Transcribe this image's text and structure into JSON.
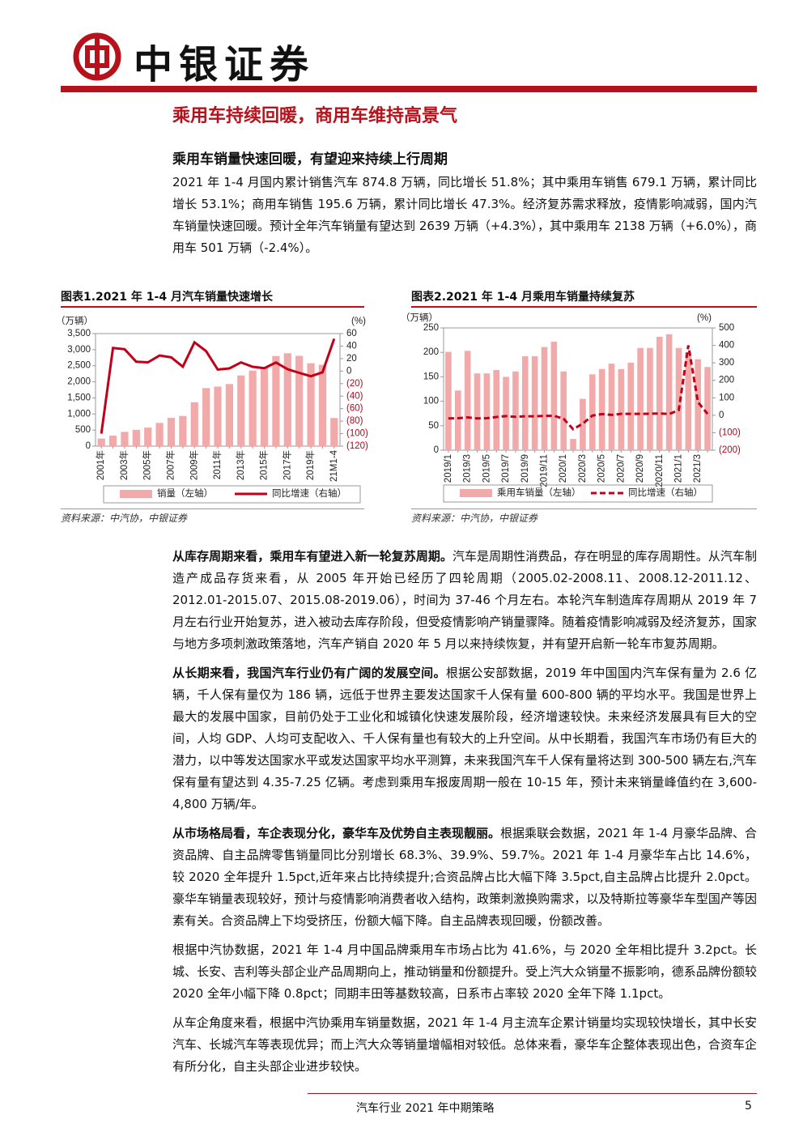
{
  "header": {
    "logo_text": "中银证券"
  },
  "section_title": "乘用车持续回暖，商用车维持高景气",
  "subtitle": "乘用车销量快速回暖，有望迎来持续上行周期",
  "intro": "2021 年 1-4 月国内累计销售汽车 874.8 万辆，同比增长 51.8%；其中乘用车销售 679.1 万辆，累计同比增长 53.1%；商用车销售 195.6 万辆，累计同比增长 47.3%。经济复苏需求释放，疫情影响减弱，国内汽车销量快速回暖。预计全年汽车销量有望达到 2639 万辆（+4.3%），其中乘用车 2138 万辆（+6.0%），商用车 501 万辆（-2.4%）。",
  "chart_data": [
    {
      "type": "bar_line",
      "title": "图表1.2021 年 1-4 月汽车销量快速增长",
      "source": "资料来源：中汽协，中银证券",
      "ylabel": "（万辆）",
      "y2label": "(%)",
      "categories": [
        "2001年",
        null,
        "2003年",
        null,
        "2005年",
        null,
        "2007年",
        null,
        "2009年",
        null,
        "2011年",
        null,
        "2013年",
        null,
        "2015年",
        null,
        "2017年",
        null,
        "2019年",
        null,
        "21M1-4"
      ],
      "series": [
        {
          "name": "销量（左轴）",
          "color": "#f2a9a9",
          "axis": "y",
          "values": [
            237,
            325,
            444,
            507,
            576,
            722,
            879,
            938,
            1364,
            1806,
            1851,
            1931,
            2198,
            2349,
            2460,
            2803,
            2888,
            2808,
            2577,
            2531,
            875
          ]
        },
        {
          "name": "同比增速（右轴）",
          "color": "#c00018",
          "axis": "y2",
          "line_style": "solid",
          "values": [
            -100,
            37,
            35,
            15,
            14,
            25,
            22,
            7,
            46,
            32,
            2.5,
            4.3,
            13.9,
            6.9,
            4.7,
            13.7,
            3,
            -2.8,
            -8.2,
            -1.9,
            51.8
          ]
        }
      ],
      "ylim": [
        0,
        3500
      ],
      "yticks": [
        0,
        500,
        {
          "value": 1000,
          "label": "1,000"
        },
        {
          "value": 1500,
          "label": "1,500"
        },
        {
          "value": 2000,
          "label": "2,000"
        },
        {
          "value": 2500,
          "label": "2,500"
        },
        {
          "value": 3000,
          "label": "3,000"
        },
        {
          "value": 3500,
          "label": "3,500"
        }
      ],
      "y2lim": [
        -120,
        60
      ],
      "y2ticks": [
        {
          "value": -120,
          "label": "(120)"
        },
        {
          "value": -100,
          "label": "(100)"
        },
        {
          "value": -80,
          "label": "(80)"
        },
        {
          "value": -60,
          "label": "(60)"
        },
        {
          "value": -40,
          "label": "(40)"
        },
        {
          "value": -20,
          "label": "(20)"
        },
        0,
        20,
        40,
        60
      ]
    },
    {
      "type": "bar_line",
      "title": "图表2.2021 年 1-4 月乘用车销量持续复苏",
      "source": "资料来源：中汽协，中银证券",
      "ylabel": "（万辆）",
      "y2label": "(%)",
      "categories": [
        "2019/1",
        null,
        "2019/3",
        null,
        "2019/5",
        null,
        "2019/7",
        null,
        "2019/9",
        null,
        "2019/11",
        null,
        "2020/1",
        null,
        "2020/3",
        null,
        "2020/5",
        null,
        "2020/7",
        null,
        "2020/9",
        null,
        "2020/11",
        null,
        "2021/1",
        null,
        "2021/3",
        null
      ],
      "series": [
        {
          "name": "乘用车销量（左轴）",
          "color": "#f2a9a9",
          "axis": "y",
          "values": [
            201,
            122,
            203,
            157,
            157,
            164,
            150,
            161,
            192,
            192,
            211,
            222,
            161,
            23,
            105,
            155,
            166,
            177,
            166,
            179,
            209,
            209,
            232,
            237,
            209,
            200,
            186,
            170
          ]
        },
        {
          "name": "同比增速（右轴）",
          "color": "#c00018",
          "axis": "y2",
          "line_style": "dashed",
          "values": [
            -18,
            -17,
            -12,
            -18,
            -17,
            -10,
            -5,
            -9,
            -6,
            -6,
            -4,
            -3,
            -20,
            -80,
            -48,
            -2,
            7,
            2,
            8,
            8,
            8,
            9,
            10,
            7,
            29,
            400,
            75,
            8
          ]
        }
      ],
      "ylim": [
        0,
        250
      ],
      "yticks": [
        0,
        50,
        100,
        150,
        200,
        250
      ],
      "y2lim": [
        -200,
        500
      ],
      "y2ticks": [
        {
          "value": -200,
          "label": "(200)"
        },
        {
          "value": -100,
          "label": "(100)"
        },
        0,
        100,
        200,
        300,
        400,
        500
      ]
    }
  ],
  "paragraphs": [
    {
      "bold": "从库存周期来看，乘用车有望进入新一轮复苏周期。",
      "text": "汽车是周期性消费品，存在明显的库存周期性。从汽车制造产成品存货来看，从 2005 年开始已经历了四轮周期（2005.02-2008.11、2008.12-2011.12、2012.01-2015.07、2015.08-2019.06），时间为 37-46 个月左右。本轮汽车制造库存周期从 2019 年 7 月左右行业开始复苏，进入被动去库存阶段，但受疫情影响产销量骤降。随着疫情影响减弱及经济复苏，国家与地方多项刺激政策落地，汽车产销自 2020 年 5 月以来持续恢复，并有望开启新一轮车市复苏周期。"
    },
    {
      "bold": "从长期来看，我国汽车行业仍有广阔的发展空间。",
      "text": "根据公安部数据，2019 年中国国内汽车保有量为 2.6 亿辆，千人保有量仅为 186 辆，远低于世界主要发达国家千人保有量 600-800 辆的平均水平。我国是世界上最大的发展中国家，目前仍处于工业化和城镇化快速发展阶段，经济增速较快。未来经济发展具有巨大的空间，人均 GDP、人均可支配收入、千人保有量也有较大的上升空间。从中长期看，我国汽车市场仍有巨大的潜力，以中等发达国家水平或发达国家平均水平测算，未来我国汽车千人保有量将达到 300-500 辆左右,汽车保有量有望达到 4.35-7.25 亿辆。考虑到乘用车报废周期一般在 10-15 年，预计未来销量峰值约在 3,600-4,800 万辆/年。"
    },
    {
      "bold": "从市场格局看，车企表现分化，豪华车及优势自主表现靓丽。",
      "text": "根据乘联会数据，2021 年 1-4 月豪华品牌、合资品牌、自主品牌零售销量同比分别增长 68.3%、39.9%、59.7%。2021 年 1-4 月豪华车占比 14.6%，较 2020 全年提升 1.5pct,近年来占比持续提升;合资品牌占比大幅下降 3.5pct,自主品牌占比提升 2.0pct。豪华车销量表现较好，预计与疫情影响消费者收入结构，政策刺激换购需求，以及特斯拉等豪华车型国产等因素有关。合资品牌上下均受挤压，份额大幅下降。自主品牌表现回暖，份额改善。"
    },
    {
      "bold": null,
      "text": "根据中汽协数据，2021 年 1-4 月中国品牌乘用车市场占比为 41.6%，与 2020 全年相比提升 3.2pct。长城、长安、吉利等头部企业产品周期向上，推动销量和份额提升。受上汽大众销量不振影响，德系品牌份额较 2020 全年小幅下降 0.8pct；同期丰田等基数较高，日系市占率较 2020 全年下降 1.1pct。"
    },
    {
      "bold": null,
      "text": "从车企角度来看，根据中汽协乘用车销量数据，2021 年 1-4 月主流车企累计销量均实现较快增长，其中长安汽车、长城汽车等表现优异；而上汽大众等销量增幅相对较低。总体来看，豪华车企整体表现出色，合资车企有所分化，自主头部企业进步较快。"
    }
  ],
  "footer": {
    "title": "汽车行业 2021 年中期策略",
    "page": "5"
  }
}
